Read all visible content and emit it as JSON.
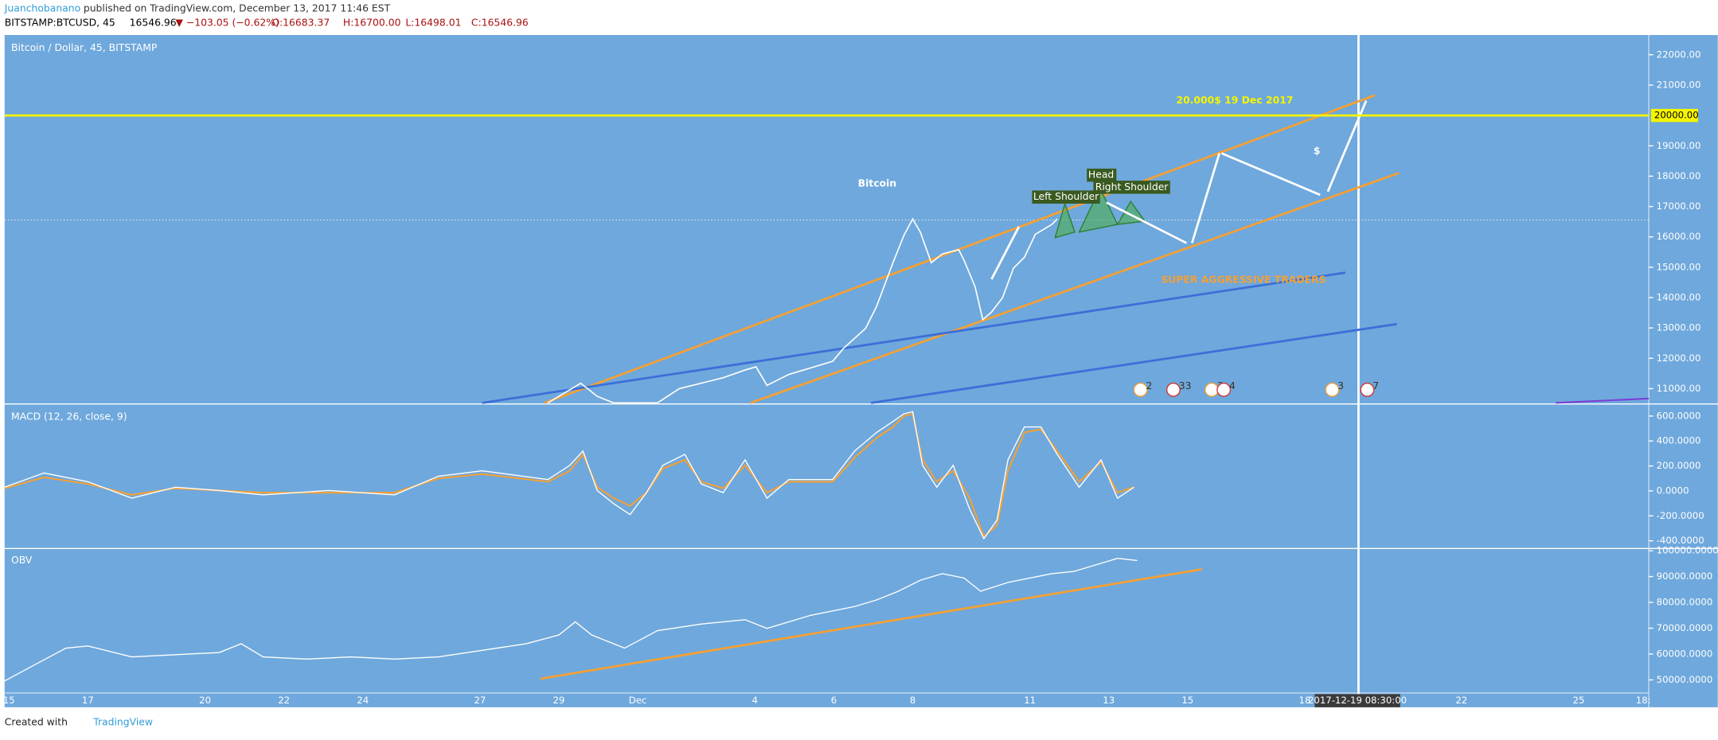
{
  "header": {
    "author": "Juanchobanano",
    "published": "published on TradingView.com, December 13, 2017 11:46 EST",
    "symbol": "BITSTAMP:BTCUSD, 45",
    "last": "16546.96",
    "change": "▼ −103.05 (−0.62%)",
    "open": "O:16683.37",
    "high": "H:16700.00",
    "low": "L:16498.01",
    "close": "C:16546.96"
  },
  "price_pane": {
    "title": "Bitcoin / Dollar, 45, BITSTAMP",
    "ylim": [
      10530,
      22650
    ],
    "yticks": [
      {
        "value": 11000,
        "label": "11000.00"
      },
      {
        "value": 12000,
        "label": "12000.00"
      },
      {
        "value": 13000,
        "label": "13000.00"
      },
      {
        "value": 14000,
        "label": "14000.00"
      },
      {
        "value": 15000,
        "label": "15000.00"
      },
      {
        "value": 16000,
        "label": "16000.00"
      },
      {
        "value": 17000,
        "label": "17000.00"
      },
      {
        "value": 18000,
        "label": "18000.00"
      },
      {
        "value": 19000,
        "label": "19000.00"
      },
      {
        "value": 21000,
        "label": "21000.00"
      },
      {
        "value": 22000,
        "label": "22000.00"
      }
    ],
    "level": {
      "value": 20000,
      "label": "20000.00"
    }
  },
  "macd_pane": {
    "title": "MACD (12, 26, close, 9)",
    "ylim": [
      -453,
      688
    ],
    "yticks": [
      {
        "value": 600,
        "label": "600.0000"
      },
      {
        "value": 400,
        "label": "400.0000"
      },
      {
        "value": 200,
        "label": "200.0000"
      },
      {
        "value": 0,
        "label": "0.0000"
      },
      {
        "value": -200,
        "label": "-200.0000"
      },
      {
        "value": -400,
        "label": "-400.0000"
      }
    ]
  },
  "obv_pane": {
    "title": "OBV",
    "ylim": [
      45340,
      100420
    ],
    "yticks": [
      {
        "value": 100000,
        "label": "100000.0000"
      },
      {
        "value": 90000,
        "label": "90000.0000"
      },
      {
        "value": 80000,
        "label": "80000.0000"
      },
      {
        "value": 70000,
        "label": "70000.0000"
      },
      {
        "value": 60000,
        "label": "60000.0000"
      },
      {
        "value": 50000,
        "label": "50000.0000"
      }
    ]
  },
  "date_axis": [
    "15",
    "17",
    "20",
    "22",
    "24",
    "27",
    "29",
    "Dec",
    "4",
    "6",
    "8",
    "11",
    "13",
    "15",
    "18",
    "2017-12-19 08:30:00",
    "22",
    "25",
    "18:"
  ],
  "annotations": {
    "logo": "Bitcoin",
    "target": "20.000$ 19 Dec 2017",
    "dollar": "$",
    "head": "Head",
    "left_shoulder": "Left Shoulder",
    "right_shoulder": "Right Shoulder",
    "traders": "SUPER AGGRESSIVE TRADERS"
  },
  "events": [
    "2",
    "33",
    "3",
    "4",
    "3",
    "7"
  ],
  "footer": {
    "created": "Created with",
    "brand": "TradingView"
  }
}
